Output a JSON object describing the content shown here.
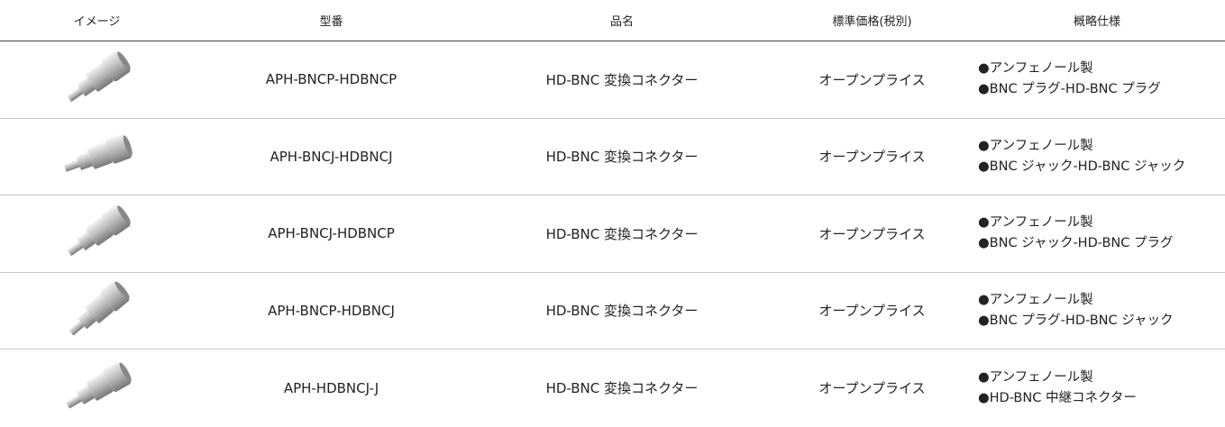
{
  "table": {
    "header": [
      "イメージ",
      "型番",
      "品名",
      "標準価格(税別)",
      "概略仕様"
    ],
    "rows": [
      {
        "model": "APH-BNCP-HDBNCP",
        "name": "HD-BNC 変換コネクター",
        "price": "オープンプライス",
        "specs": [
          "●アンフェノール製",
          "●BNC プラグ-HD-BNC プラグ"
        ]
      },
      {
        "model": "APH-BNCJ-HDBNCJ",
        "name": "HD-BNC 変換コネクター",
        "price": "オープンプライス",
        "specs": [
          "●アンフェノール製",
          "●BNC ジャック-HD-BNC ジャック"
        ]
      },
      {
        "model": "APH-BNCJ-HDBNCP",
        "name": "HD-BNC 変換コネクター",
        "price": "オープンプライス",
        "specs": [
          "●アンフェノール製",
          "●BNC ジャック-HD-BNC プラグ"
        ]
      },
      {
        "model": "APH-BNCP-HDBNCJ",
        "name": "HD-BNC 変換コネクター",
        "price": "オープンプライス",
        "specs": [
          "●アンフェノール製",
          "●BNC プラグ-HD-BNC ジャック"
        ]
      },
      {
        "model": "APH-HDBNCJ-J",
        "name": "HD-BNC 変換コネクター",
        "price": "オープンプライス",
        "specs": [
          "●アンフェノール製",
          "●HD-BNC 中継コネクター"
        ]
      }
    ]
  }
}
